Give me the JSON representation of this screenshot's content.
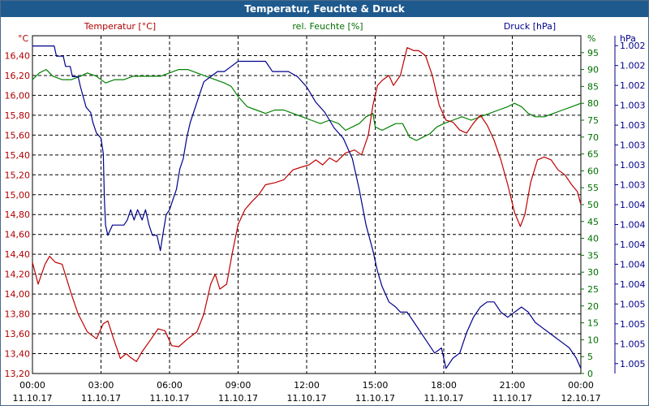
{
  "window": {
    "title": "Temperatur, Feuchte & Druck"
  },
  "chart_data": {
    "type": "line",
    "title": "Temperatur, Feuchte & Druck",
    "grid": true,
    "x": {
      "tick_times": [
        "00:00",
        "03:00",
        "06:00",
        "09:00",
        "12:00",
        "15:00",
        "18:00",
        "21:00",
        "00:00"
      ],
      "tick_dates": [
        "11.10.17",
        "11.10.17",
        "11.10.17",
        "11.10.17",
        "11.10.17",
        "11.10.17",
        "11.10.17",
        "11.10.17",
        "12.10.17"
      ],
      "range_hours": [
        0,
        24
      ]
    },
    "axes": {
      "temperature": {
        "header": "Temperatur [°C]",
        "unit": "°C",
        "range": [
          13.2,
          16.6
        ],
        "ticks": [
          "13,20",
          "13,40",
          "13,60",
          "13,80",
          "14,00",
          "14,20",
          "14,40",
          "14,60",
          "14,80",
          "15,00",
          "15,20",
          "15,40",
          "15,60",
          "15,80",
          "16,00",
          "16,20",
          "16,40"
        ],
        "color": "#b00000"
      },
      "humidity": {
        "header": "rel. Feuchte [%]",
        "unit": "%",
        "range": [
          0,
          100
        ],
        "ticks": [
          "0",
          "5",
          "10",
          "15",
          "20",
          "25",
          "30",
          "35",
          "40",
          "45",
          "50",
          "55",
          "60",
          "65",
          "70",
          "75",
          "80",
          "85",
          "90",
          "95"
        ],
        "color": "#007000"
      },
      "pressure": {
        "header": "Druck [hPa]",
        "unit": "hPa",
        "range": [
          1001.9,
          1005.2
        ],
        "ticks": [
          "1.002",
          "1.002",
          "1.002",
          "1.003",
          "1.003",
          "1.003",
          "1.003",
          "1.003",
          "1.004",
          "1.004",
          "1.004",
          "1.004",
          "1.004",
          "1.005",
          "1.005",
          "1.005",
          "1.005"
        ],
        "color": "#00008b"
      }
    },
    "series": [
      {
        "name": "Temperatur [°C]",
        "axis": "temperature",
        "color": "#c00000",
        "points": [
          [
            0,
            14.32
          ],
          [
            0.25,
            14.1
          ],
          [
            0.55,
            14.3
          ],
          [
            0.75,
            14.38
          ],
          [
            1.0,
            14.32
          ],
          [
            1.3,
            14.3
          ],
          [
            1.7,
            14.0
          ],
          [
            2.0,
            13.8
          ],
          [
            2.4,
            13.62
          ],
          [
            2.8,
            13.55
          ],
          [
            3.1,
            13.7
          ],
          [
            3.3,
            13.73
          ],
          [
            3.55,
            13.55
          ],
          [
            3.85,
            13.35
          ],
          [
            4.1,
            13.4
          ],
          [
            4.3,
            13.36
          ],
          [
            4.55,
            13.32
          ],
          [
            4.8,
            13.42
          ],
          [
            5.2,
            13.55
          ],
          [
            5.5,
            13.65
          ],
          [
            5.8,
            13.63
          ],
          [
            6.1,
            13.48
          ],
          [
            6.4,
            13.47
          ],
          [
            6.8,
            13.55
          ],
          [
            7.2,
            13.62
          ],
          [
            7.5,
            13.8
          ],
          [
            7.8,
            14.1
          ],
          [
            8.0,
            14.2
          ],
          [
            8.2,
            14.05
          ],
          [
            8.5,
            14.1
          ],
          [
            8.75,
            14.42
          ],
          [
            9.0,
            14.7
          ],
          [
            9.3,
            14.85
          ],
          [
            9.6,
            14.93
          ],
          [
            9.9,
            15.0
          ],
          [
            10.2,
            15.1
          ],
          [
            10.6,
            15.12
          ],
          [
            11.0,
            15.15
          ],
          [
            11.4,
            15.25
          ],
          [
            11.8,
            15.28
          ],
          [
            12.1,
            15.3
          ],
          [
            12.4,
            15.35
          ],
          [
            12.7,
            15.3
          ],
          [
            13.0,
            15.37
          ],
          [
            13.3,
            15.33
          ],
          [
            13.7,
            15.42
          ],
          [
            14.1,
            15.45
          ],
          [
            14.4,
            15.4
          ],
          [
            14.7,
            15.6
          ],
          [
            14.9,
            15.9
          ],
          [
            15.1,
            16.1
          ],
          [
            15.3,
            16.15
          ],
          [
            15.6,
            16.2
          ],
          [
            15.8,
            16.1
          ],
          [
            16.1,
            16.2
          ],
          [
            16.4,
            16.48
          ],
          [
            16.7,
            16.45
          ],
          [
            16.9,
            16.45
          ],
          [
            17.2,
            16.4
          ],
          [
            17.5,
            16.2
          ],
          [
            17.8,
            15.9
          ],
          [
            18.1,
            15.75
          ],
          [
            18.4,
            15.73
          ],
          [
            18.7,
            15.65
          ],
          [
            19.0,
            15.62
          ],
          [
            19.3,
            15.72
          ],
          [
            19.6,
            15.8
          ],
          [
            19.9,
            15.7
          ],
          [
            20.2,
            15.55
          ],
          [
            20.5,
            15.35
          ],
          [
            20.8,
            15.1
          ],
          [
            21.1,
            14.82
          ],
          [
            21.35,
            14.68
          ],
          [
            21.55,
            14.8
          ],
          [
            21.8,
            15.12
          ],
          [
            22.1,
            15.35
          ],
          [
            22.4,
            15.38
          ],
          [
            22.7,
            15.35
          ],
          [
            23.0,
            15.25
          ],
          [
            23.3,
            15.2
          ],
          [
            23.6,
            15.1
          ],
          [
            23.85,
            15.03
          ],
          [
            24.0,
            14.9
          ]
        ]
      },
      {
        "name": "rel. Feuchte [%]",
        "axis": "humidity",
        "color": "#008000",
        "points": [
          [
            0,
            87
          ],
          [
            0.3,
            89
          ],
          [
            0.6,
            90
          ],
          [
            0.9,
            88
          ],
          [
            1.3,
            87
          ],
          [
            1.7,
            87
          ],
          [
            2.1,
            88
          ],
          [
            2.4,
            89
          ],
          [
            2.8,
            88
          ],
          [
            3.2,
            86
          ],
          [
            3.6,
            87
          ],
          [
            4.0,
            87
          ],
          [
            4.4,
            88
          ],
          [
            4.8,
            88
          ],
          [
            5.2,
            88
          ],
          [
            5.6,
            88
          ],
          [
            6.0,
            89
          ],
          [
            6.4,
            90
          ],
          [
            6.8,
            90
          ],
          [
            7.2,
            89
          ],
          [
            7.6,
            88
          ],
          [
            8.0,
            87
          ],
          [
            8.4,
            86
          ],
          [
            8.7,
            85
          ],
          [
            9.0,
            82
          ],
          [
            9.4,
            79
          ],
          [
            9.8,
            78
          ],
          [
            10.2,
            77
          ],
          [
            10.6,
            78
          ],
          [
            11.0,
            78
          ],
          [
            11.4,
            77
          ],
          [
            11.8,
            76
          ],
          [
            12.2,
            75
          ],
          [
            12.6,
            74
          ],
          [
            13.0,
            75
          ],
          [
            13.4,
            74
          ],
          [
            13.7,
            72
          ],
          [
            14.0,
            73
          ],
          [
            14.3,
            74
          ],
          [
            14.6,
            76
          ],
          [
            14.9,
            77
          ],
          [
            15.0,
            73
          ],
          [
            15.3,
            72
          ],
          [
            15.6,
            73
          ],
          [
            15.9,
            74
          ],
          [
            16.2,
            74
          ],
          [
            16.5,
            70
          ],
          [
            16.8,
            69
          ],
          [
            17.1,
            70
          ],
          [
            17.4,
            71
          ],
          [
            17.7,
            73
          ],
          [
            18.0,
            74
          ],
          [
            18.4,
            75
          ],
          [
            18.8,
            76
          ],
          [
            19.2,
            75
          ],
          [
            19.6,
            76
          ],
          [
            20.0,
            77
          ],
          [
            20.4,
            78
          ],
          [
            20.8,
            79
          ],
          [
            21.1,
            80
          ],
          [
            21.4,
            79
          ],
          [
            21.7,
            77
          ],
          [
            22.0,
            76
          ],
          [
            22.4,
            76
          ],
          [
            22.8,
            77
          ],
          [
            23.2,
            78
          ],
          [
            23.6,
            79
          ],
          [
            24.0,
            80
          ]
        ]
      },
      {
        "name": "Druck [hPa]",
        "axis": "pressure",
        "color": "#00008b",
        "points": [
          [
            0,
            1005.1
          ],
          [
            0.95,
            1005.1
          ],
          [
            1.05,
            1005.0
          ],
          [
            1.35,
            1005.0
          ],
          [
            1.45,
            1004.9
          ],
          [
            1.65,
            1004.9
          ],
          [
            1.75,
            1004.8
          ],
          [
            2.0,
            1004.8
          ],
          [
            2.1,
            1004.7
          ],
          [
            2.35,
            1004.5
          ],
          [
            2.55,
            1004.45
          ],
          [
            2.65,
            1004.35
          ],
          [
            2.8,
            1004.25
          ],
          [
            3.0,
            1004.2
          ],
          [
            3.1,
            1004.05
          ],
          [
            3.15,
            1003.6
          ],
          [
            3.2,
            1003.35
          ],
          [
            3.3,
            1003.25
          ],
          [
            3.5,
            1003.35
          ],
          [
            3.8,
            1003.35
          ],
          [
            4.0,
            1003.35
          ],
          [
            4.15,
            1003.4
          ],
          [
            4.3,
            1003.5
          ],
          [
            4.45,
            1003.4
          ],
          [
            4.6,
            1003.5
          ],
          [
            4.8,
            1003.4
          ],
          [
            4.95,
            1003.5
          ],
          [
            5.1,
            1003.35
          ],
          [
            5.25,
            1003.25
          ],
          [
            5.45,
            1003.25
          ],
          [
            5.6,
            1003.1
          ],
          [
            5.7,
            1003.25
          ],
          [
            5.85,
            1003.45
          ],
          [
            6.0,
            1003.5
          ],
          [
            6.15,
            1003.6
          ],
          [
            6.3,
            1003.7
          ],
          [
            6.45,
            1003.9
          ],
          [
            6.6,
            1004.0
          ],
          [
            6.75,
            1004.2
          ],
          [
            6.9,
            1004.35
          ],
          [
            7.05,
            1004.45
          ],
          [
            7.2,
            1004.55
          ],
          [
            7.35,
            1004.65
          ],
          [
            7.5,
            1004.75
          ],
          [
            7.8,
            1004.8
          ],
          [
            8.1,
            1004.85
          ],
          [
            8.4,
            1004.85
          ],
          [
            8.7,
            1004.9
          ],
          [
            9.0,
            1004.95
          ],
          [
            9.3,
            1004.95
          ],
          [
            9.7,
            1004.95
          ],
          [
            10.2,
            1004.95
          ],
          [
            10.5,
            1004.85
          ],
          [
            10.8,
            1004.85
          ],
          [
            11.2,
            1004.85
          ],
          [
            11.6,
            1004.8
          ],
          [
            12.0,
            1004.7
          ],
          [
            12.4,
            1004.55
          ],
          [
            12.8,
            1004.45
          ],
          [
            13.2,
            1004.3
          ],
          [
            13.6,
            1004.2
          ],
          [
            14.0,
            1004.0
          ],
          [
            14.3,
            1003.7
          ],
          [
            14.6,
            1003.35
          ],
          [
            14.9,
            1003.1
          ],
          [
            15.1,
            1002.9
          ],
          [
            15.3,
            1002.75
          ],
          [
            15.6,
            1002.6
          ],
          [
            15.9,
            1002.55
          ],
          [
            16.1,
            1002.5
          ],
          [
            16.4,
            1002.5
          ],
          [
            16.7,
            1002.4
          ],
          [
            17.0,
            1002.3
          ],
          [
            17.3,
            1002.2
          ],
          [
            17.6,
            1002.1
          ],
          [
            17.9,
            1002.15
          ],
          [
            18.1,
            1001.95
          ],
          [
            18.4,
            1002.05
          ],
          [
            18.7,
            1002.1
          ],
          [
            19.0,
            1002.3
          ],
          [
            19.3,
            1002.45
          ],
          [
            19.6,
            1002.55
          ],
          [
            19.9,
            1002.6
          ],
          [
            20.2,
            1002.6
          ],
          [
            20.5,
            1002.5
          ],
          [
            20.8,
            1002.45
          ],
          [
            21.1,
            1002.5
          ],
          [
            21.4,
            1002.55
          ],
          [
            21.7,
            1002.5
          ],
          [
            22.0,
            1002.4
          ],
          [
            22.3,
            1002.35
          ],
          [
            22.6,
            1002.3
          ],
          [
            22.9,
            1002.25
          ],
          [
            23.2,
            1002.2
          ],
          [
            23.5,
            1002.15
          ],
          [
            23.8,
            1002.05
          ],
          [
            24.0,
            1001.95
          ]
        ]
      }
    ]
  }
}
